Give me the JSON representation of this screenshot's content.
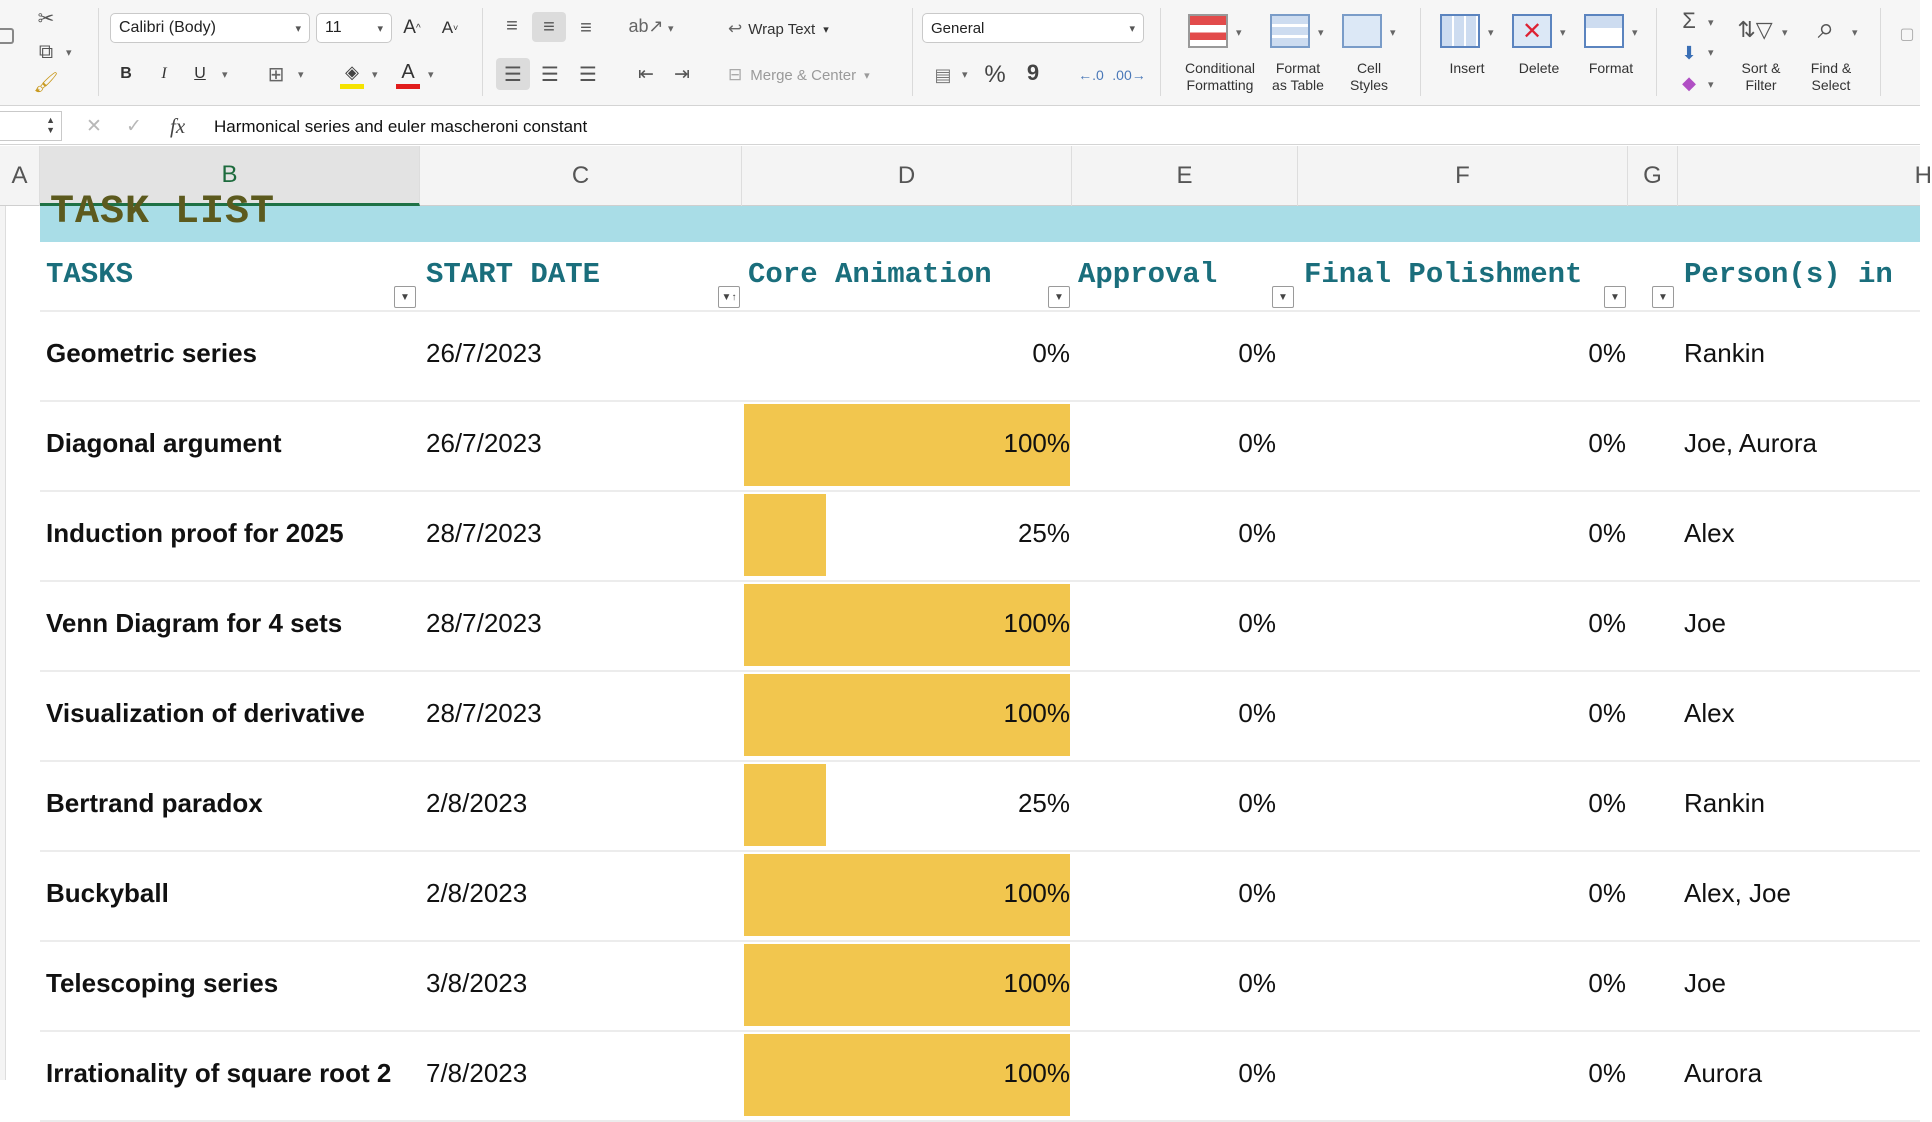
{
  "ribbon": {
    "font_name": "Calibri (Body)",
    "font_size": "11",
    "wrap_text": "Wrap Text",
    "merge_center": "Merge & Center",
    "number_format": "General",
    "bold": "B",
    "italic": "I",
    "underline": "U",
    "percent": "%",
    "comma": "9",
    "conditional_formatting": [
      "Conditional",
      "Formatting"
    ],
    "format_as_table": [
      "Format",
      "as Table"
    ],
    "cell_styles": [
      "Cell",
      "Styles"
    ],
    "insert": "Insert",
    "delete": "Delete",
    "format": "Format",
    "sort_filter": [
      "Sort &",
      "Filter"
    ],
    "find_select": [
      "Find &",
      "Select"
    ],
    "colors": {
      "fill": "#f5e300",
      "font": "#e11c1c"
    }
  },
  "formula_bar": {
    "fx": "fx",
    "content": "Harmonical series and euler mascheroni constant"
  },
  "columns": [
    "A",
    "B",
    "C",
    "D",
    "E",
    "F",
    "G",
    "H"
  ],
  "selected_column": "B",
  "sheet": {
    "title": "TASK LIST",
    "headers": {
      "tasks": "TASKS",
      "start_date": "START DATE",
      "core_animation": "Core Animation",
      "approval": "Approval",
      "final_polishment": "Final Polishment",
      "persons": "Person(s) in"
    },
    "progress_color": "#f2c64e",
    "rows": [
      {
        "task": "Geometric series",
        "start": "26/7/2023",
        "core": "0%",
        "core_fraction": 0,
        "approval": "0%",
        "final": "0%",
        "person": "Rankin"
      },
      {
        "task": "Diagonal argument",
        "start": "26/7/2023",
        "core": "100%",
        "core_fraction": 1,
        "approval": "0%",
        "final": "0%",
        "person": "Joe, Aurora"
      },
      {
        "task": "Induction proof for 2025",
        "start": "28/7/2023",
        "core": "25%",
        "core_fraction": 0.25,
        "approval": "0%",
        "final": "0%",
        "person": "Alex"
      },
      {
        "task": "Venn Diagram for 4 sets",
        "start": "28/7/2023",
        "core": "100%",
        "core_fraction": 1,
        "approval": "0%",
        "final": "0%",
        "person": "Joe"
      },
      {
        "task": "Visualization of derivative",
        "start": "28/7/2023",
        "core": "100%",
        "core_fraction": 1,
        "approval": "0%",
        "final": "0%",
        "person": "Alex"
      },
      {
        "task": "Bertrand paradox",
        "start": "2/8/2023",
        "core": "25%",
        "core_fraction": 0.25,
        "approval": "0%",
        "final": "0%",
        "person": "Rankin"
      },
      {
        "task": "Buckyball",
        "start": "2/8/2023",
        "core": "100%",
        "core_fraction": 1,
        "approval": "0%",
        "final": "0%",
        "person": "Alex, Joe"
      },
      {
        "task": "Telescoping series",
        "start": "3/8/2023",
        "core": "100%",
        "core_fraction": 1,
        "approval": "0%",
        "final": "0%",
        "person": "Joe"
      },
      {
        "task": "Irrationality of square root 2",
        "start": "7/8/2023",
        "core": "100%",
        "core_fraction": 1,
        "approval": "0%",
        "final": "0%",
        "person": "Aurora"
      }
    ]
  }
}
